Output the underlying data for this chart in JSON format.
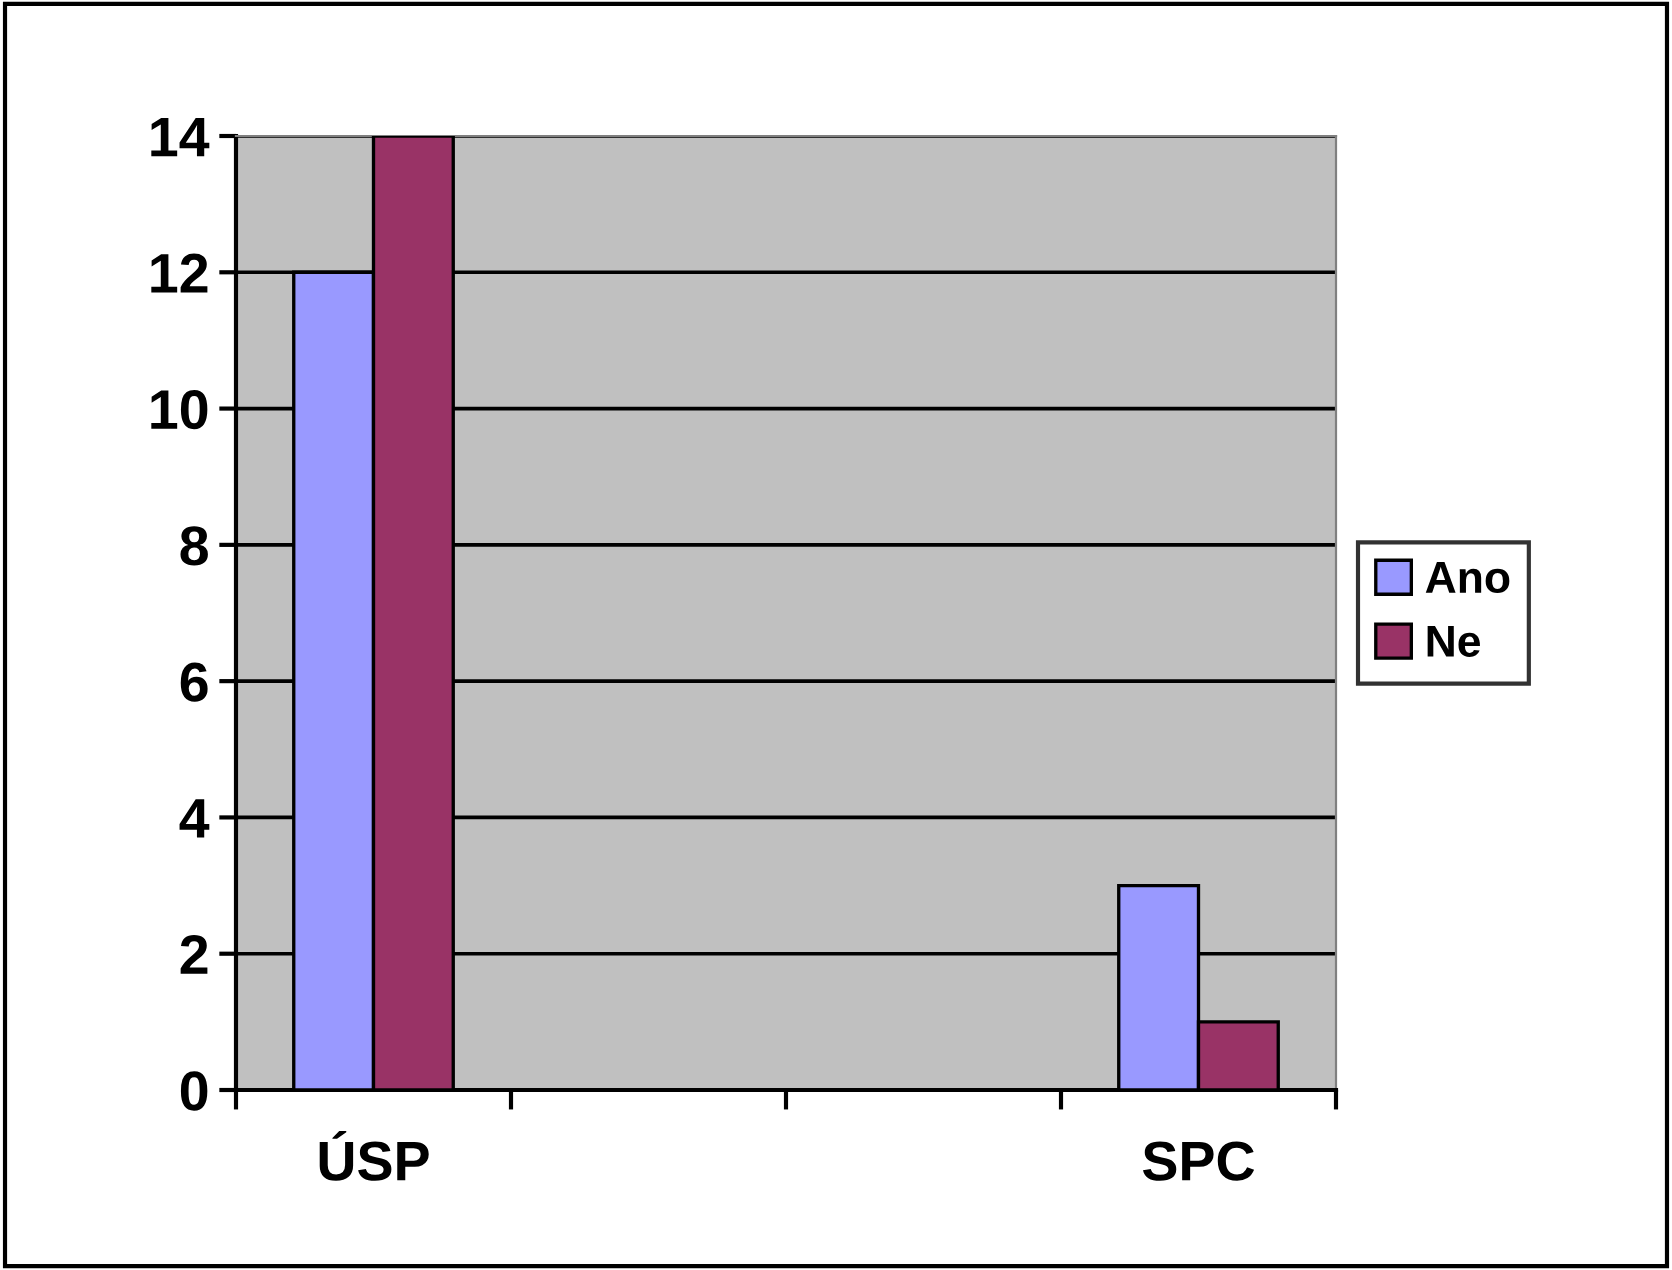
{
  "chart_data": {
    "type": "bar",
    "categories": [
      "ÚSP",
      null,
      null,
      "SPC"
    ],
    "series": [
      {
        "name": "Ano",
        "color": "#9999ff",
        "values": [
          12,
          null,
          null,
          3
        ]
      },
      {
        "name": "Ne",
        "color": "#993366",
        "values": [
          14,
          null,
          null,
          1
        ]
      }
    ],
    "ylim": [
      0,
      14
    ],
    "yticks": [
      0,
      2,
      4,
      6,
      8,
      10,
      12,
      14
    ],
    "grid": "y",
    "legend": "right"
  }
}
